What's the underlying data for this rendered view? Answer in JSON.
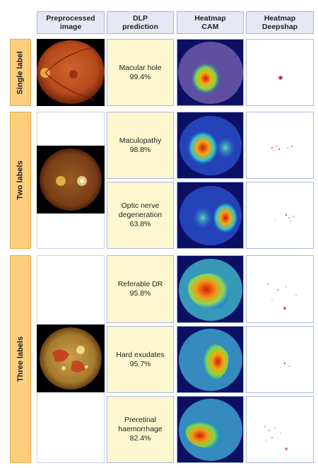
{
  "headers": {
    "preprocessed": "Preprocessed\nimage",
    "prediction": "DLP\nprediction",
    "cam": "Heatmap\nCAM",
    "deepshap": "Heatmap\nDeepshap"
  },
  "sections": {
    "single": "Single label",
    "two": "Two labels",
    "three": "Three labels"
  },
  "predictions": {
    "macular_hole": {
      "label": "Macular hole",
      "confidence": "99.4%"
    },
    "maculopathy": {
      "label": "Maculopathy",
      "confidence": "98.8%"
    },
    "optic_nerve": {
      "label_line1": "Optic nerve",
      "label_line2": "degeneration",
      "confidence": "63.8%"
    },
    "referable_dr": {
      "label": "Referable DR",
      "confidence": "95.8%"
    },
    "hard_exudates": {
      "label": "Hard exudates",
      "confidence": "95.7%"
    },
    "preretinal": {
      "label_line1": "Preretinal",
      "label_line2": "haemorrhage",
      "confidence": "82.4%"
    }
  },
  "colors": {
    "header_bg": "#e6e8f6",
    "section_bg": "#fbcf7e",
    "prediction_bg": "#fdf6cf",
    "cam_bg": "#0c1064"
  }
}
